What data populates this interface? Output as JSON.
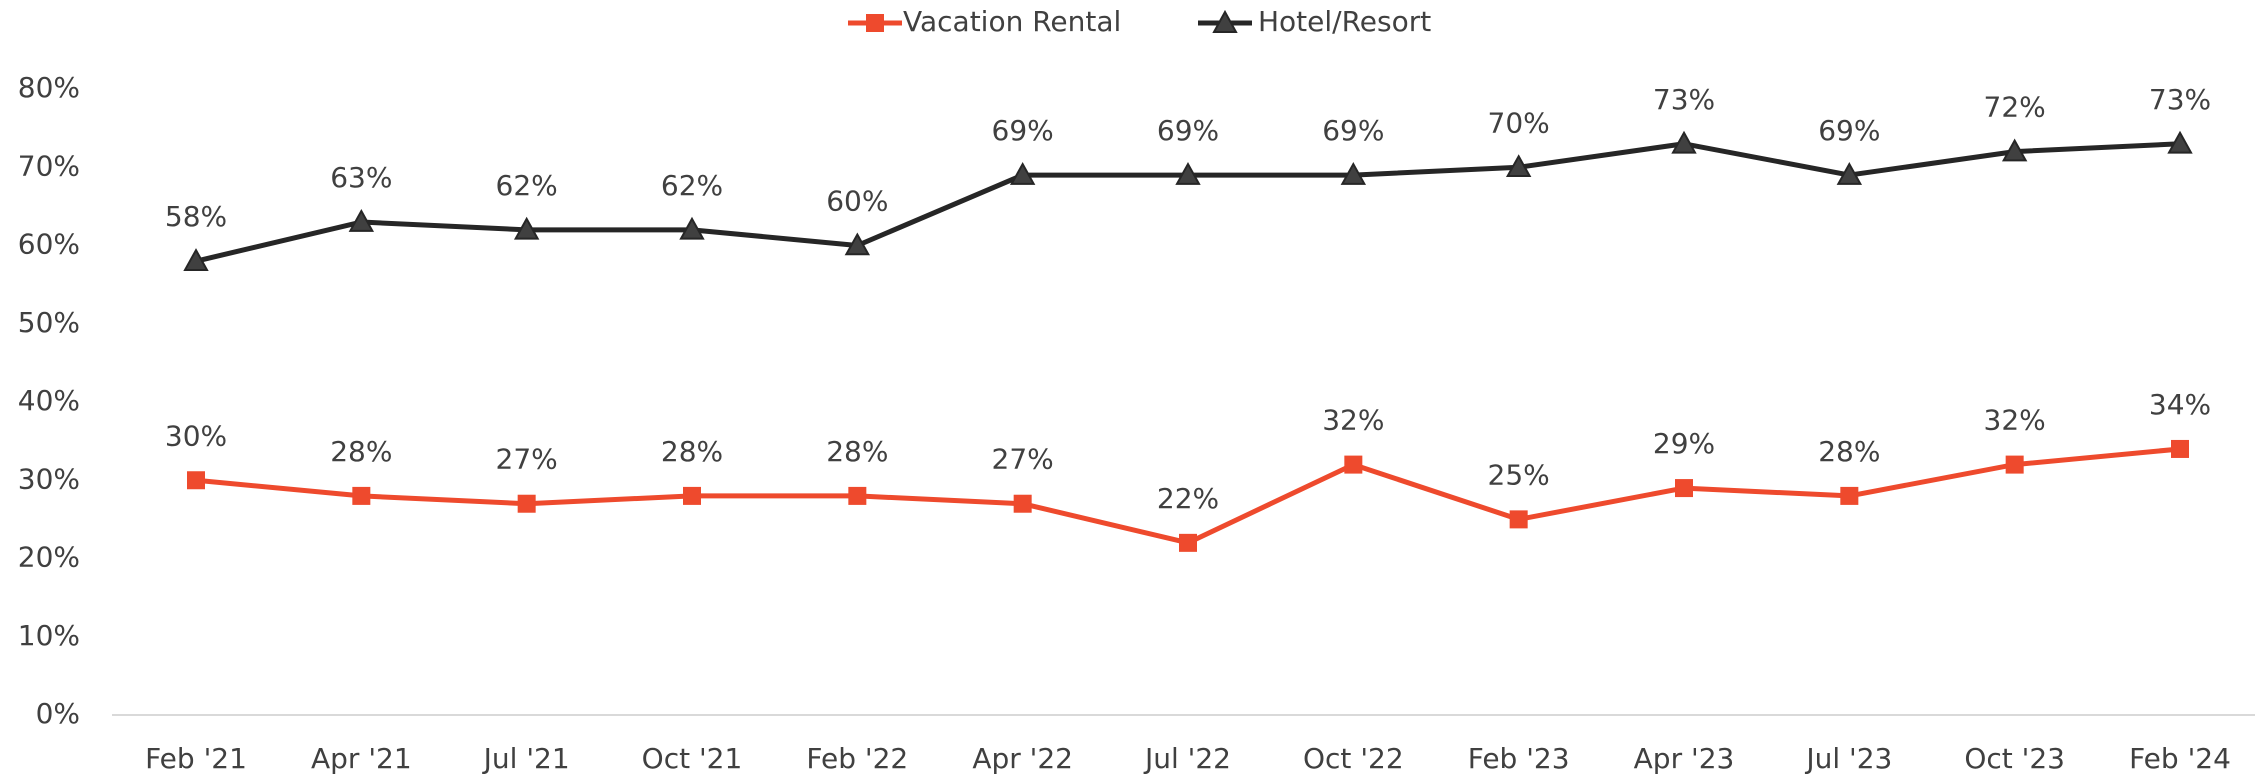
{
  "chart_data": {
    "type": "line",
    "categories": [
      "Feb '21",
      "Apr '21",
      "Jul '21",
      "Oct '21",
      "Feb '22",
      "Apr '22",
      "Jul '22",
      "Oct '22",
      "Feb '23",
      "Apr '23",
      "Jul '23",
      "Oct '23",
      "Feb '24"
    ],
    "series": [
      {
        "name": "Vacation Rental",
        "color": "#ee4a2d",
        "marker": "square",
        "values": [
          30,
          28,
          27,
          28,
          28,
          27,
          22,
          32,
          25,
          29,
          28,
          32,
          34
        ],
        "value_labels": [
          "30%",
          "28%",
          "27%",
          "28%",
          "28%",
          "27%",
          "22%",
          "32%",
          "25%",
          "29%",
          "28%",
          "32%",
          "34%"
        ]
      },
      {
        "name": "Hotel/Resort",
        "color": "#262626",
        "marker": "triangle",
        "values": [
          58,
          63,
          62,
          62,
          60,
          69,
          69,
          69,
          70,
          73,
          69,
          72,
          73
        ],
        "value_labels": [
          "58%",
          "63%",
          "62%",
          "62%",
          "60%",
          "69%",
          "69%",
          "69%",
          "70%",
          "73%",
          "69%",
          "72%",
          "73%"
        ]
      }
    ],
    "ylim": [
      0,
      80
    ],
    "yticks": [
      {
        "value": 0,
        "label": "0%"
      },
      {
        "value": 10,
        "label": "10%"
      },
      {
        "value": 20,
        "label": "20%"
      },
      {
        "value": 30,
        "label": "30%"
      },
      {
        "value": 40,
        "label": "40%"
      },
      {
        "value": 50,
        "label": "50%"
      },
      {
        "value": 60,
        "label": "60%"
      },
      {
        "value": 70,
        "label": "70%"
      },
      {
        "value": 80,
        "label": "80%"
      }
    ],
    "grid": false,
    "legend": "top"
  }
}
